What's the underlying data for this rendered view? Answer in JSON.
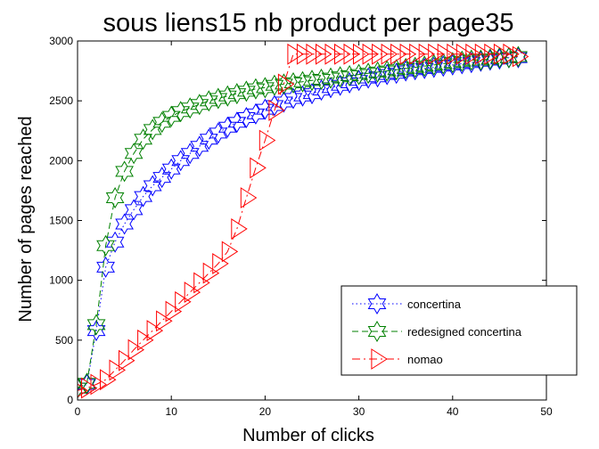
{
  "chart_data": {
    "type": "line",
    "title": "sous liens15 nb product per page35",
    "xlabel": "Number of clicks",
    "ylabel": "Number of pages reached",
    "xlim": [
      0,
      50
    ],
    "ylim": [
      0,
      3000
    ],
    "xticks": [
      0,
      10,
      20,
      30,
      40,
      50
    ],
    "yticks": [
      0,
      500,
      1000,
      1500,
      2000,
      2500,
      3000
    ],
    "grid": false,
    "legend_position": "lower-right",
    "series": [
      {
        "name": "concertina",
        "color": "#0000ff",
        "line_style": "dotted",
        "marker": "hexagram",
        "x": [
          0,
          1,
          2,
          3,
          4,
          5,
          6,
          7,
          8,
          9,
          10,
          11,
          12,
          13,
          14,
          15,
          16,
          17,
          18,
          19,
          20,
          21,
          22,
          23,
          24,
          25,
          26,
          27,
          28,
          29,
          30,
          31,
          32,
          33,
          34,
          35,
          36,
          37,
          38,
          39,
          40,
          41,
          42,
          43,
          44,
          45,
          46,
          47
        ],
        "y": [
          100,
          130,
          580,
          1110,
          1320,
          1470,
          1590,
          1700,
          1790,
          1860,
          1930,
          2000,
          2060,
          2120,
          2180,
          2230,
          2280,
          2320,
          2360,
          2390,
          2430,
          2460,
          2490,
          2520,
          2540,
          2560,
          2590,
          2610,
          2630,
          2650,
          2670,
          2690,
          2700,
          2720,
          2730,
          2750,
          2760,
          2770,
          2780,
          2790,
          2800,
          2810,
          2820,
          2830,
          2840,
          2850,
          2860,
          2860
        ]
      },
      {
        "name": "redesigned concertina",
        "color": "#008000",
        "line_style": "dashed",
        "marker": "hexagram",
        "x": [
          0,
          1,
          2,
          3,
          4,
          5,
          6,
          7,
          8,
          9,
          10,
          11,
          12,
          13,
          14,
          15,
          16,
          17,
          18,
          19,
          20,
          21,
          22,
          23,
          24,
          25,
          26,
          27,
          28,
          29,
          30,
          31,
          32,
          33,
          34,
          35,
          36,
          37,
          38,
          39,
          40,
          41,
          42,
          43,
          44,
          45,
          46,
          47
        ],
        "y": [
          100,
          140,
          630,
          1290,
          1690,
          1910,
          2060,
          2180,
          2260,
          2320,
          2370,
          2410,
          2440,
          2470,
          2500,
          2520,
          2540,
          2560,
          2580,
          2600,
          2610,
          2630,
          2640,
          2650,
          2660,
          2670,
          2680,
          2690,
          2700,
          2710,
          2720,
          2730,
          2740,
          2750,
          2760,
          2770,
          2780,
          2790,
          2800,
          2810,
          2820,
          2830,
          2840,
          2840,
          2850,
          2860,
          2860,
          2870
        ]
      },
      {
        "name": "nomao",
        "color": "#ff0000",
        "line_style": "dashdot",
        "marker": "triangle-right",
        "x": [
          0,
          1,
          2,
          3,
          4,
          5,
          6,
          7,
          8,
          9,
          10,
          11,
          12,
          13,
          14,
          15,
          16,
          17,
          18,
          19,
          20,
          21,
          22,
          23,
          24,
          25,
          26,
          27,
          28,
          29,
          30,
          31,
          32,
          33,
          34,
          35,
          36,
          37,
          38,
          39,
          40,
          41,
          42,
          43,
          44,
          45,
          46,
          47
        ],
        "y": [
          80,
          100,
          130,
          170,
          250,
          330,
          420,
          500,
          580,
          660,
          740,
          820,
          900,
          980,
          1060,
          1140,
          1240,
          1430,
          1690,
          1940,
          2170,
          2420,
          2640,
          2890,
          2890,
          2890,
          2890,
          2890,
          2890,
          2890,
          2890,
          2890,
          2890,
          2890,
          2890,
          2890,
          2890,
          2890,
          2890,
          2890,
          2890,
          2890,
          2890,
          2890,
          2890,
          2890,
          2890,
          2870
        ]
      }
    ]
  }
}
